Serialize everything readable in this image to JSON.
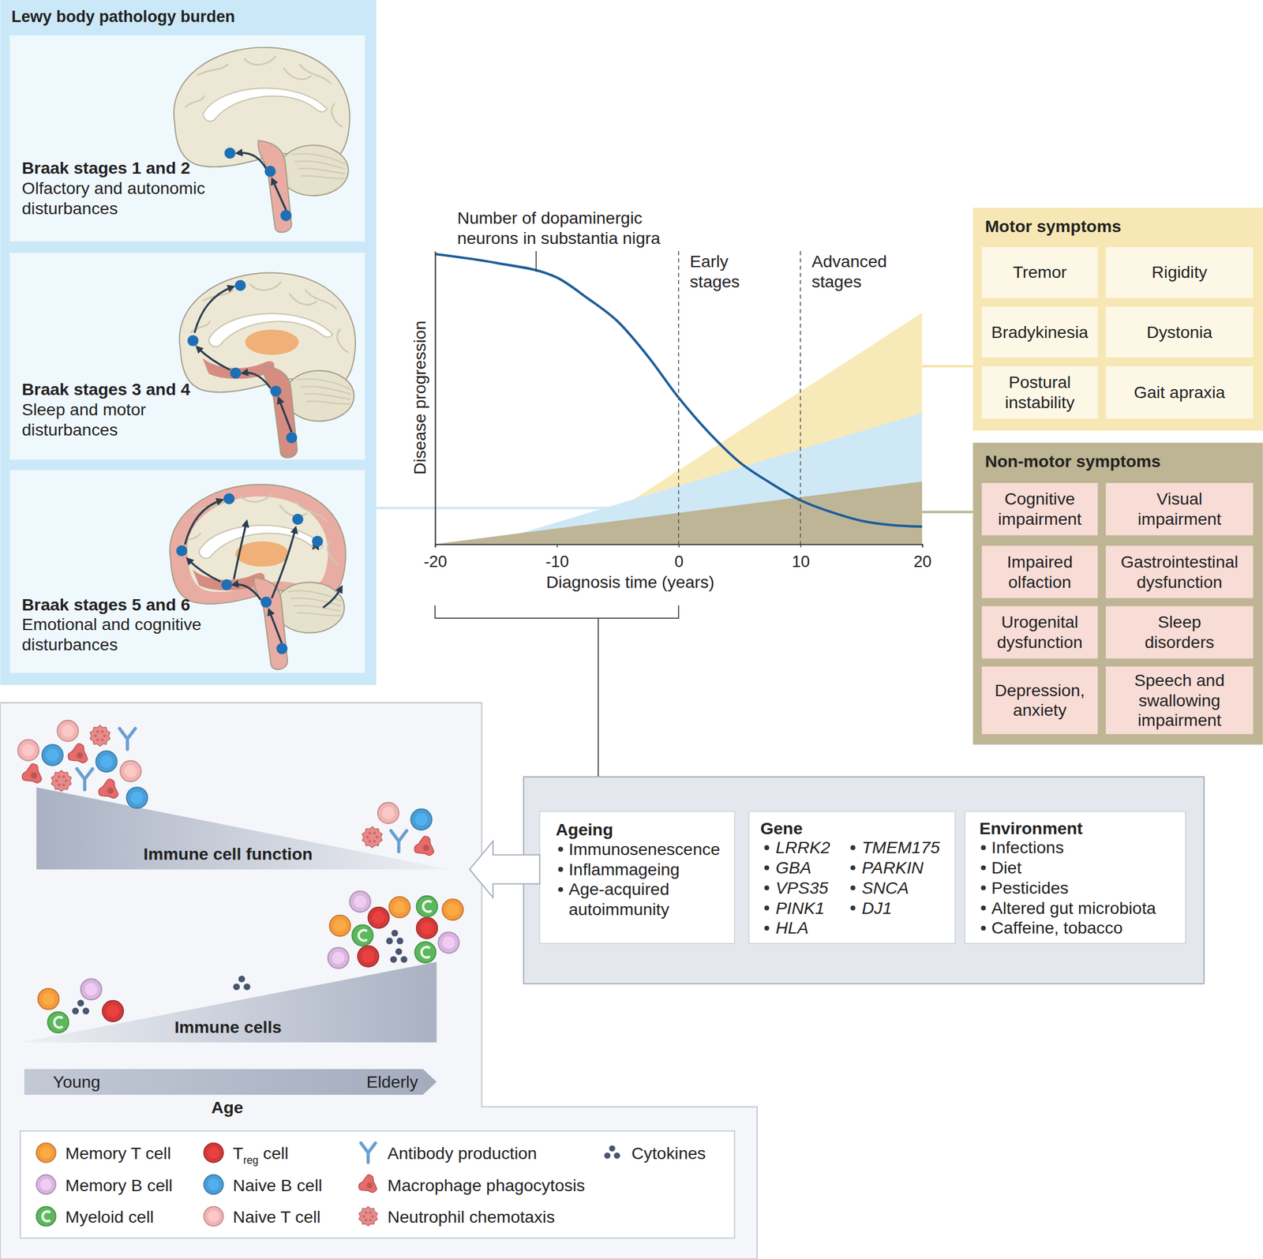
{
  "braak_panel": {
    "title": "Lewy body pathology burden",
    "stages": [
      {
        "title": "Braak stages 1 and 2",
        "description": [
          "Olfactory and autonomic",
          "disturbances"
        ]
      },
      {
        "title": "Braak stages 3 and 4",
        "description": [
          "Sleep and motor",
          "disturbances"
        ]
      },
      {
        "title": "Braak stages 5 and 6",
        "description": [
          "Emotional and cognitive",
          "disturbances"
        ]
      }
    ]
  },
  "chart_data": {
    "type": "line",
    "x_label": "Diagnosis time (years)",
    "y_label": "Disease progression",
    "xlim": [
      -20,
      20
    ],
    "xticks": [
      -20,
      -10,
      0,
      10,
      20
    ],
    "ylim": [
      0,
      100
    ],
    "yticks": [],
    "tick_labels": "x",
    "series": [
      {
        "type": "area",
        "color": "#f8eab8",
        "x": [
          -4,
          20
        ],
        "values": [
          14.5,
          79
        ]
      },
      {
        "type": "area",
        "color": "#cfe8f6",
        "x": [
          -13,
          20
        ],
        "values": [
          3.7,
          44.8
        ]
      },
      {
        "type": "area",
        "color": "#bdb596",
        "x": [
          -20,
          20
        ],
        "values": [
          0,
          21.4
        ]
      },
      {
        "type": "line",
        "color": "#1d5d99",
        "line_style": "solid",
        "x": [
          -20,
          -15,
          -10,
          -7.5,
          -5,
          -2.5,
          0,
          2.5,
          5,
          7.5,
          10,
          12.5,
          15,
          17.5,
          20
        ],
        "values": [
          99,
          96,
          91,
          84,
          76,
          64,
          50,
          38,
          28,
          21,
          15,
          11,
          8,
          6.5,
          6
        ]
      }
    ],
    "annotations": [
      {
        "type": "label",
        "x": -11.7,
        "y": 93,
        "text": [
          "Number of dopaminergic",
          "neurons in substantia nigra"
        ]
      },
      {
        "type": "vline",
        "x": 0,
        "line_style": "dashed",
        "text": [
          "Early",
          "stages"
        ]
      },
      {
        "type": "vline",
        "x": 10,
        "line_style": "dashed",
        "text": [
          "Advanced",
          "stages"
        ]
      },
      {
        "type": "bracket",
        "x": [
          -20,
          0
        ]
      }
    ]
  },
  "motor_symptoms": {
    "title": "Motor symptoms",
    "items": [
      [
        "Tremor"
      ],
      [
        "Rigidity"
      ],
      [
        "Bradykinesia"
      ],
      [
        "Dystonia"
      ],
      [
        "Postural",
        "instability"
      ],
      [
        "Gait apraxia"
      ]
    ]
  },
  "non_motor_symptoms": {
    "title": "Non-motor symptoms",
    "items": [
      [
        "Cognitive",
        "impairment"
      ],
      [
        "Visual",
        "impairment"
      ],
      [
        "Impaired",
        "olfaction"
      ],
      [
        "Gastrointestinal",
        "dysfunction"
      ],
      [
        "Urogenital",
        "dysfunction"
      ],
      [
        "Sleep",
        "disorders"
      ],
      [
        "Depression,",
        "anxiety"
      ],
      [
        "Speech and",
        "swallowing",
        "impairment"
      ]
    ]
  },
  "risk_factors": {
    "ageing": {
      "title": "Ageing",
      "items": [
        [
          "Immunosenescence"
        ],
        [
          "Inflammageing"
        ],
        [
          "Age-acquired",
          "autoimmunity"
        ]
      ]
    },
    "gene": {
      "title": "Gene",
      "items": [
        "LRRK2",
        "GBA",
        "VPS35",
        "PINK1",
        "HLA",
        "TMEM175",
        "PARKIN",
        "SNCA",
        "DJ1"
      ]
    },
    "environment": {
      "title": "Environment",
      "items": [
        "Infections",
        "Diet",
        "Pesticides",
        "Altered gut microbiota",
        "Caffeine, tobacco"
      ]
    }
  },
  "ageing_panel": {
    "wedges": [
      "Immune cell function",
      "Immune cells"
    ],
    "age_axis": {
      "title": "Age",
      "start": "Young",
      "end": "Elderly"
    },
    "legend": [
      {
        "label": "Memory T cell",
        "color": "#f59a3c",
        "marker": "circle"
      },
      {
        "label": "Memory B cell",
        "color": "#d9b6e0",
        "marker": "circle"
      },
      {
        "label": "Myeloid cell",
        "color": "#5cb85c",
        "marker": "crescent"
      },
      {
        "label": "T",
        "subscript": "reg",
        "after": " cell",
        "color": "#d23a3a",
        "marker": "circle"
      },
      {
        "label": "Naive B cell",
        "color": "#4a9ed8",
        "marker": "circle"
      },
      {
        "label": "Naive T cell",
        "color": "#f4b3b3",
        "marker": "circle"
      },
      {
        "label": "Antibody production",
        "color": "#6a9fd0",
        "marker": "antibody"
      },
      {
        "label": "Macrophage phagocytosis",
        "color": "#e86a6a",
        "marker": "blob"
      },
      {
        "label": "Neutrophil chemotaxis",
        "color": "#ec8a8a",
        "marker": "spiky"
      },
      {
        "label": "Cytokines",
        "color": "#4a5570",
        "marker": "dots"
      }
    ]
  }
}
